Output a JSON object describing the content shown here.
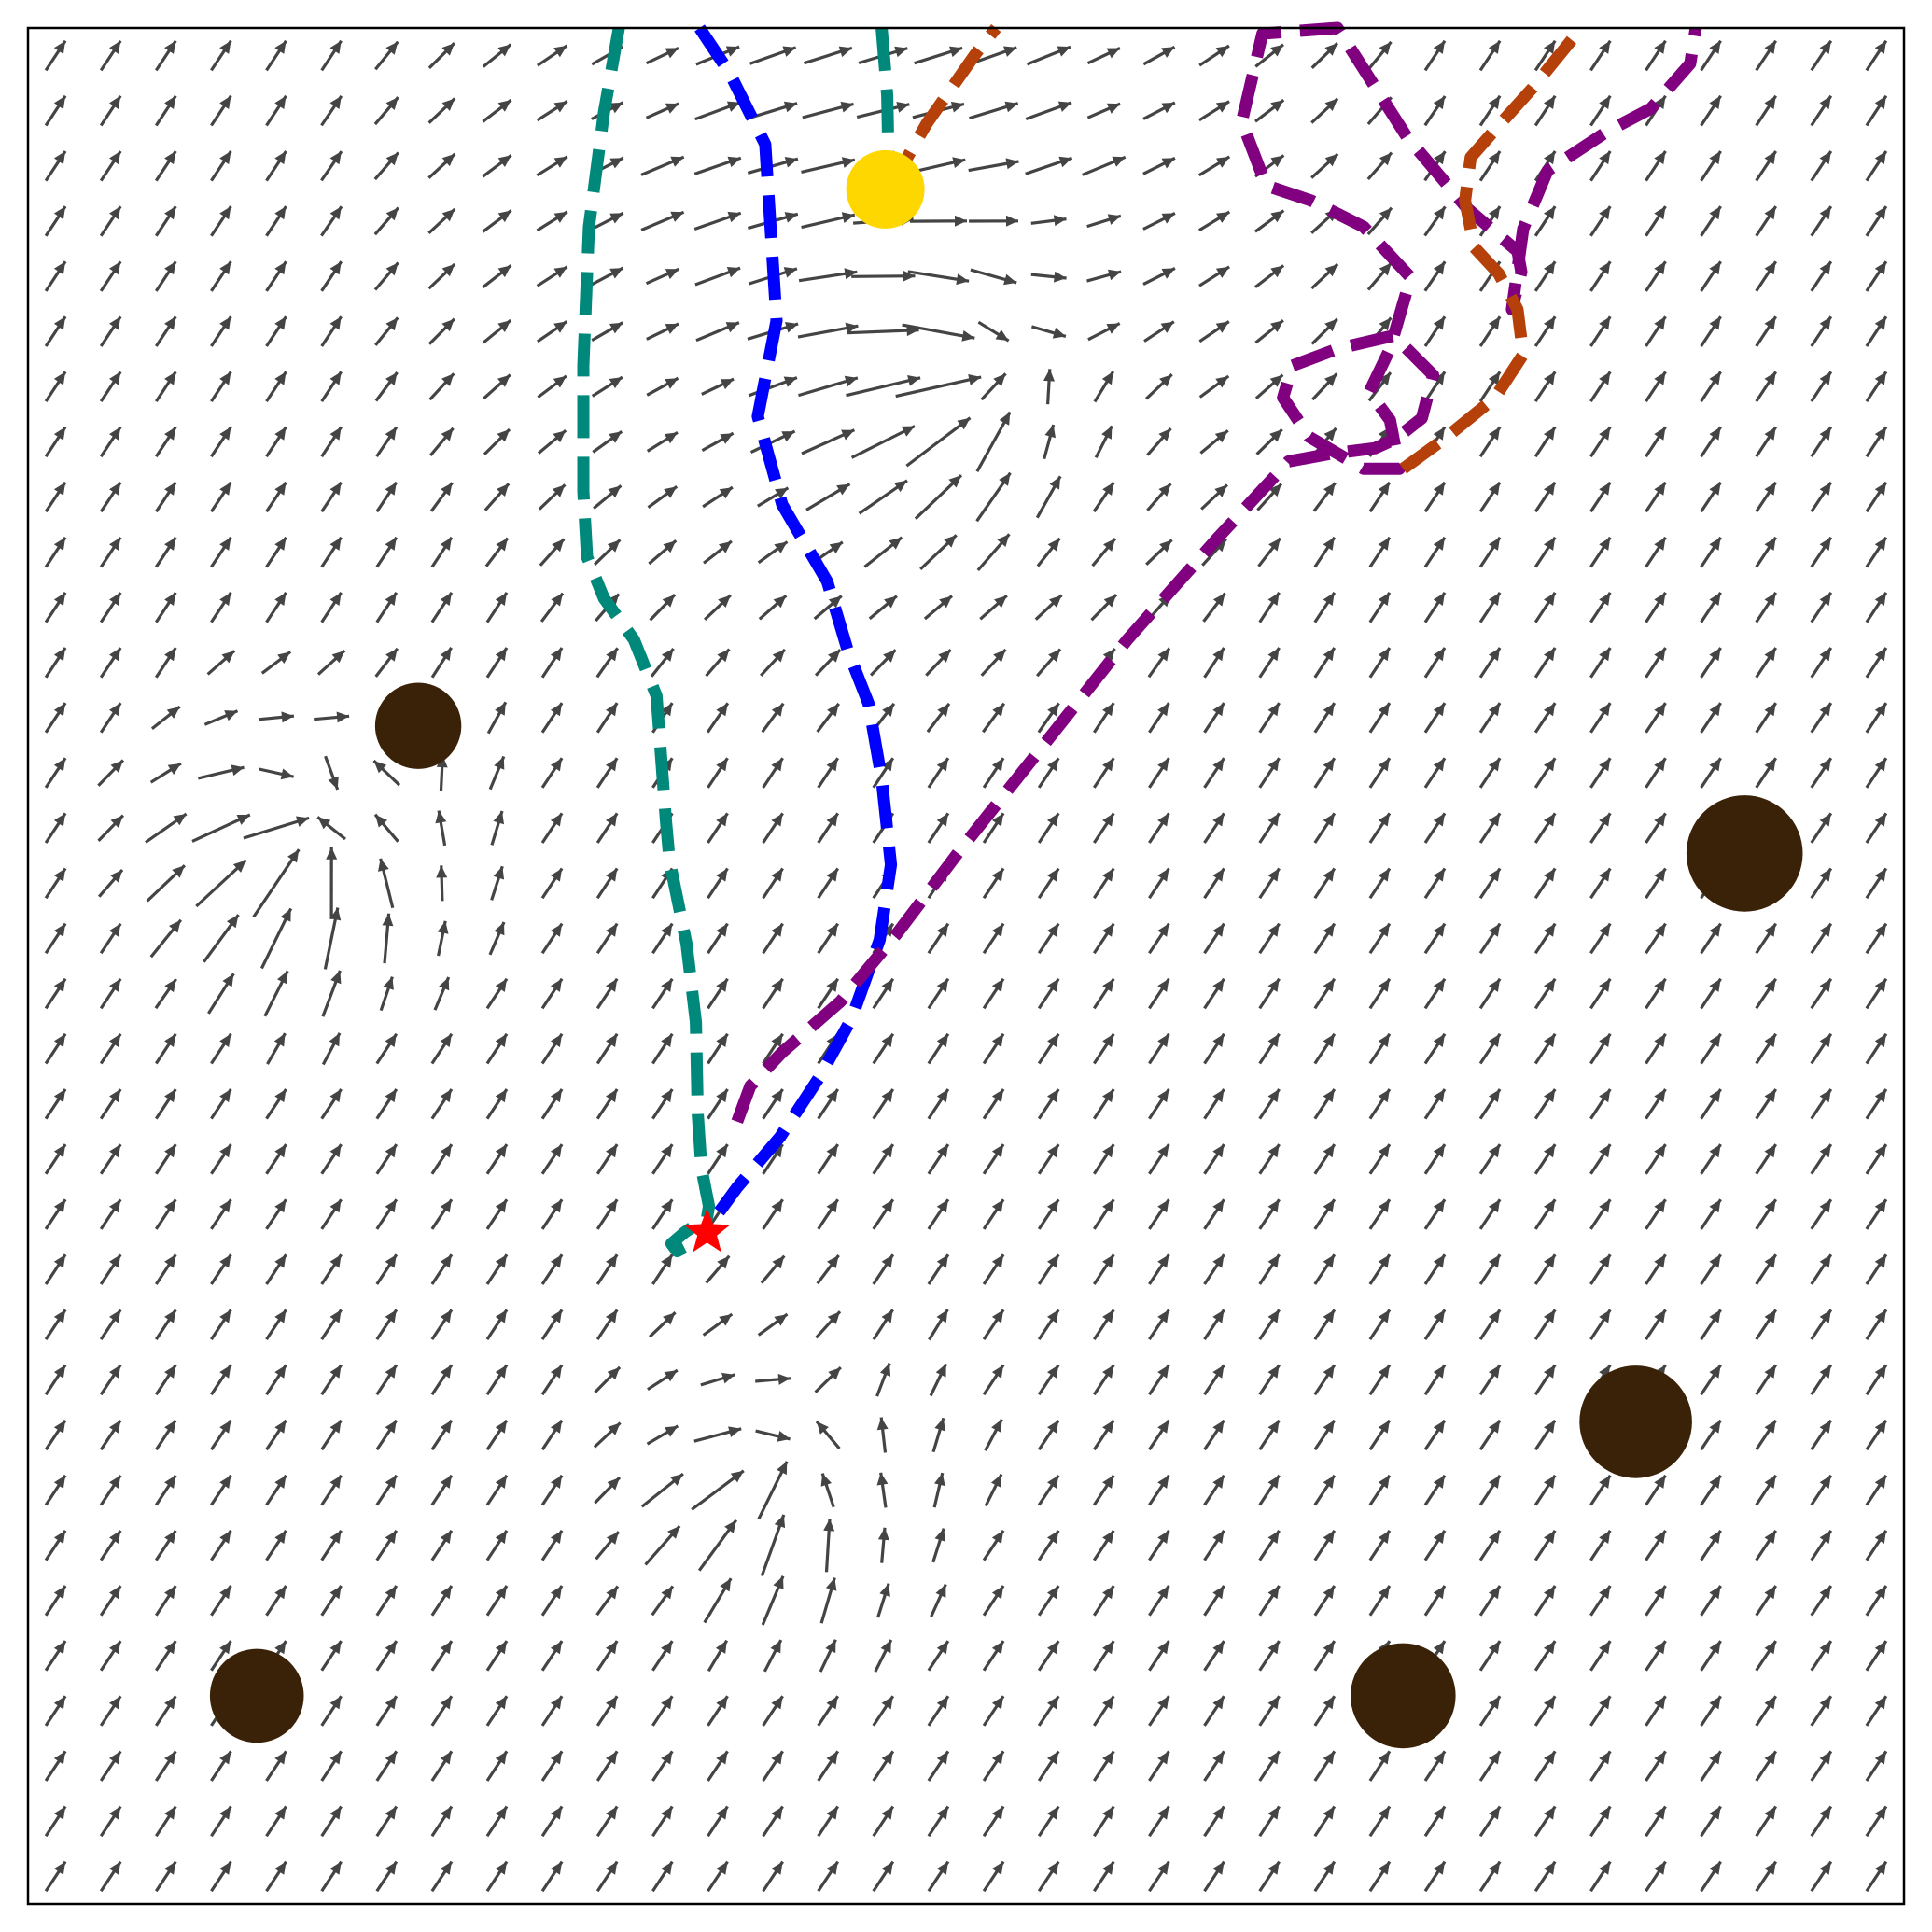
{
  "chart_data": {
    "type": "quiver",
    "xlim": [
      0,
      100
    ],
    "ylim": [
      0,
      100
    ],
    "grid": false,
    "legend": "none",
    "colors": {
      "arrow": "#444444",
      "obstacle": "#3a2208",
      "goal": "#ffd700",
      "start": "#ff0000",
      "teal": "#00897b",
      "blue": "#0000ff",
      "purple": "#800080",
      "rust": "#b5400a"
    },
    "start": [
      36.2,
      35.8
    ],
    "goal": [
      45.7,
      91.4
    ],
    "obstacles": [
      {
        "x": 20.8,
        "y": 62.8,
        "r": 2.3
      },
      {
        "x": 91.5,
        "y": 56.0,
        "r": 3.1
      },
      {
        "x": 85.7,
        "y": 25.7,
        "r": 3.0
      },
      {
        "x": 12.2,
        "y": 11.1,
        "r": 2.5
      },
      {
        "x": 73.3,
        "y": 11.1,
        "r": 2.8
      }
    ],
    "vortices": [
      {
        "x": 15.0,
        "y": 57.0,
        "strength": 1.6
      },
      {
        "x": 51.0,
        "y": 81.0,
        "strength": 1.4
      },
      {
        "x": 40.0,
        "y": 23.0,
        "strength": 1.2
      }
    ],
    "series": [
      {
        "color_key": "teal",
        "x": [
          31.5,
          30.7,
          29.9,
          29.6,
          29.6,
          29.8,
          30.7,
          32.3,
          33.5,
          34.0,
          34.2,
          35.1,
          35.6,
          35.7,
          35.9,
          36.3,
          36.2,
          35.0,
          34.3,
          34.6,
          35.4
        ],
        "y": [
          100,
          95.5,
          89.4,
          82.0,
          75.3,
          71.8,
          69.6,
          67.4,
          64.4,
          57.8,
          55.6,
          51.2,
          47.0,
          42.1,
          39.2,
          37.2,
          36.6,
          35.8,
          35.2,
          34.8,
          35.2
        ]
      },
      {
        "color_key": "teal",
        "x": [
          45.5,
          45.8,
          45.9
        ],
        "y": [
          100,
          96.4,
          91.4
        ]
      },
      {
        "color_key": "blue",
        "x": [
          35.8,
          37.4,
          39.3,
          39.9,
          38.9,
          40.2,
          42.6,
          43.7,
          44.8,
          45.5,
          46.0,
          45.4,
          43.9,
          42.2,
          40.1,
          37.8,
          37.0,
          36.6
        ],
        "y": [
          100,
          97.6,
          93.8,
          84.4,
          79.3,
          74.6,
          70.5,
          66.8,
          64.0,
          60.0,
          55.4,
          51.4,
          47.2,
          44.1,
          40.9,
          38.2,
          37.1,
          36.6
        ]
      },
      {
        "color_key": "purple",
        "x": [
          37.8,
          38.5,
          40.2,
          43.3,
          46.3,
          49.7,
          54.0,
          58.6,
          63.4,
          67.2,
          69.4,
          71.8,
          72.9,
          74.3,
          74.9,
          72.8,
          69.8,
          67.4,
          66.9,
          68.3,
          71.2,
          73.1,
          72.6,
          71.5,
          72.6,
          73.7,
          71.2,
          68.4,
          66.0,
          64.7,
          65.8,
          69.8,
          73.5,
          76.7,
          79.4,
          79.6,
          79.1,
          79.7,
          81.0,
          84.2,
          86.5,
          88.6,
          88.9
        ],
        "y": [
          41.7,
          43.6,
          45.4,
          48.1,
          51.7,
          56.2,
          61.6,
          67.4,
          72.8,
          76.9,
          77.3,
          77.6,
          78.1,
          79.2,
          81.5,
          83.6,
          82.9,
          82.0,
          80.3,
          78.2,
          76.5,
          76.5,
          79.1,
          80.6,
          82.9,
          86.7,
          89.4,
          90.8,
          91.6,
          95.0,
          99.7,
          100,
          94.2,
          90.4,
          88.1,
          87.0,
          85.0,
          89.3,
          92.4,
          94.5,
          95.7,
          98.1,
          100
        ]
      },
      {
        "color_key": "rust",
        "x": [
          45.9,
          47.9,
          50.5,
          51.6
        ],
        "y": [
          91.4,
          94.9,
          98.6,
          100
        ]
      },
      {
        "color_key": "rust",
        "x": [
          73.3,
          75.5,
          78.2,
          79.7,
          79.4,
          78.4,
          77.1,
          76.6,
          76.9,
          78.4,
          80.2,
          82.8
        ],
        "y": [
          76.5,
          78.1,
          80.3,
          82.6,
          85.0,
          86.9,
          88.3,
          90.8,
          93.1,
          94.8,
          96.8,
          100
        ]
      }
    ]
  }
}
